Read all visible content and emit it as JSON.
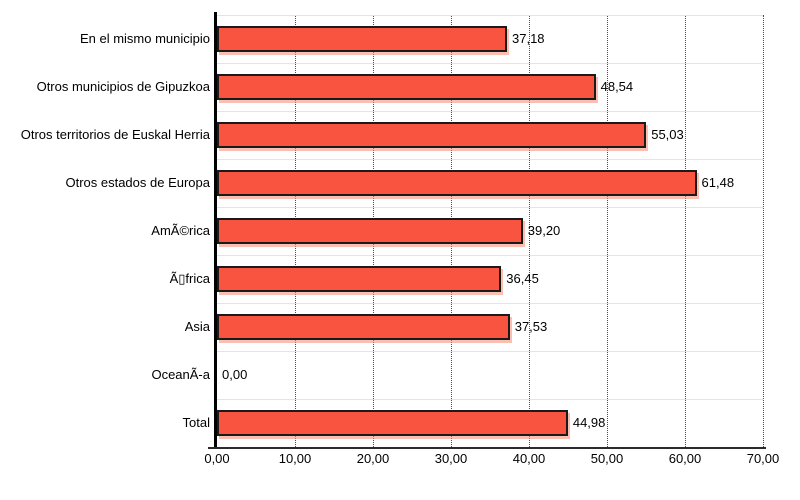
{
  "chart_data": {
    "type": "bar",
    "orientation": "horizontal",
    "title": "",
    "xlabel": "",
    "ylabel": "",
    "legend": "none",
    "grid": "vertical-dotted",
    "xlim": [
      0,
      70
    ],
    "categories": [
      "En el mismo municipio",
      "Otros municipios de Gipuzkoa",
      "Otros territorios de Euskal Herria",
      "Otros estados de Europa",
      "AmÃ©rica",
      "Ã▯frica",
      "Asia",
      "OceanÃ-a",
      "Total"
    ],
    "values": [
      37.18,
      48.54,
      55.03,
      61.48,
      39.2,
      36.45,
      37.53,
      0.0,
      44.98
    ],
    "value_labels": [
      "37,18",
      "48,54",
      "55,03",
      "61,48",
      "39,20",
      "36,45",
      "37,53",
      "0,00",
      "44,98"
    ],
    "x_ticks": [
      {
        "label": "0,00",
        "value": 0
      },
      {
        "label": "10,00",
        "value": 10
      },
      {
        "label": "20,00",
        "value": 20
      },
      {
        "label": "30,00",
        "value": 30
      },
      {
        "label": "40,00",
        "value": 40
      },
      {
        "label": "50,00",
        "value": 50
      },
      {
        "label": "60,00",
        "value": 60
      },
      {
        "label": "70,00",
        "value": 70
      }
    ],
    "bar_color": "#F85440",
    "bar_border_color": "#1A1A1A",
    "gridline_color": "#4A4A4A",
    "row_separator_color": "#E4E4E4",
    "axis_color": "#000000"
  }
}
